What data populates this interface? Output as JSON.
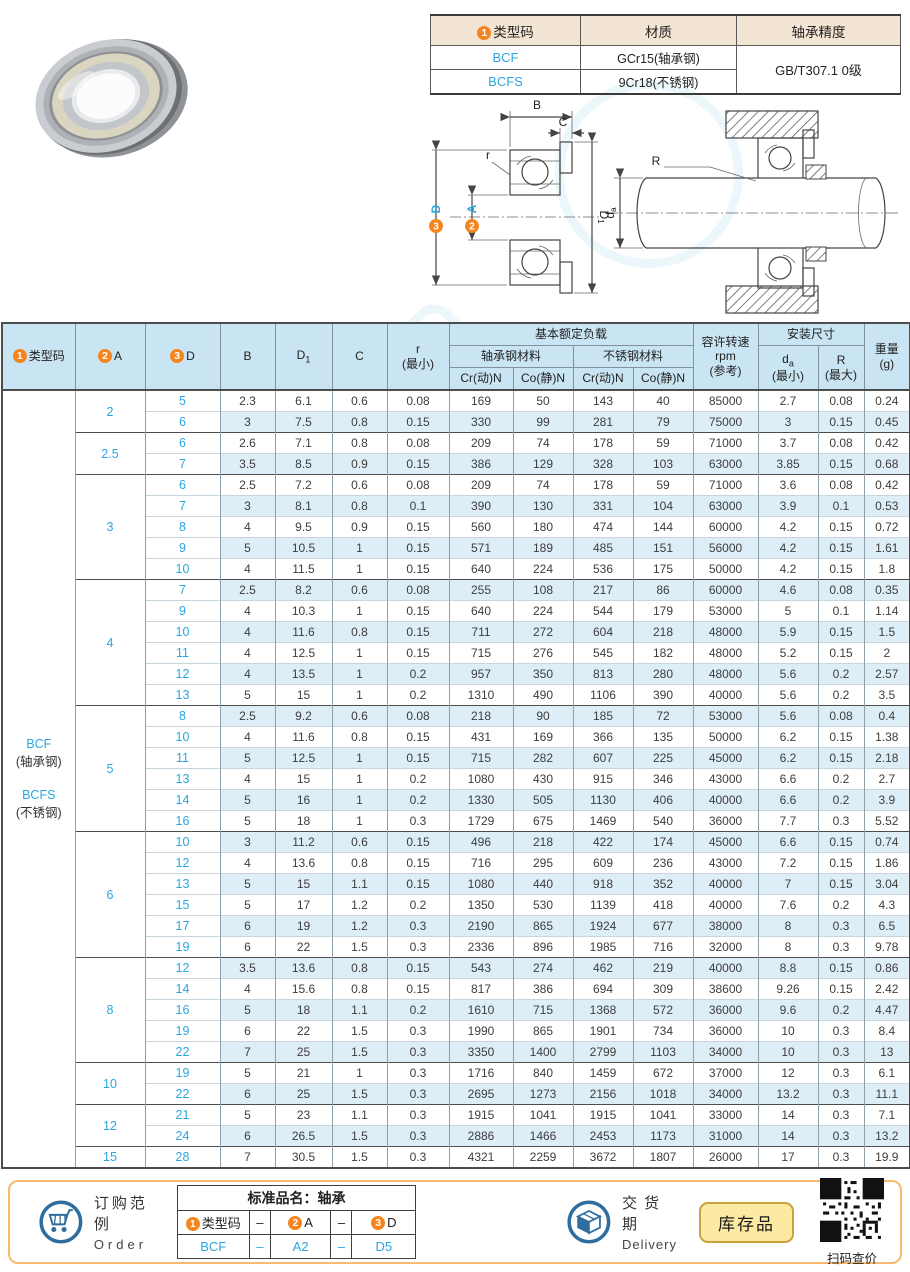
{
  "colors": {
    "accent_blue": "#2aa7e0",
    "badge_orange": "#f5861f",
    "stripe_blue": "#ddeef7",
    "header_blue": "#c9e4f2",
    "beige_header": "#f3e5d3",
    "footer_border": "#f8b96e",
    "stock_yellow": "#fce9a2",
    "icon_blue": "#2e6d9e"
  },
  "top_table": {
    "col1_badge": "1",
    "col1": "类型码",
    "col2": "材质",
    "col3": "轴承精度",
    "rows": [
      {
        "code": "BCF",
        "material": "GCr15(轴承钢)"
      },
      {
        "code": "BCFS",
        "material": "9Cr18(不锈钢)"
      }
    ],
    "precision": "GB/T307.1 0级"
  },
  "diagram": {
    "b": "B",
    "c": "C",
    "r": "r",
    "d_badge": "3",
    "d_label": "D",
    "a_badge": "2",
    "a_label": "A",
    "d1": "D",
    "d1_sub": "1",
    "R": "R",
    "da": "d",
    "da_sub": "a"
  },
  "main_table": {
    "row_count": 37,
    "header": {
      "type_badge": "1",
      "type_label": "类型码",
      "a_badge": "2",
      "a_label": "A",
      "d_badge": "3",
      "d_label": "D",
      "b": "B",
      "d1": "D",
      "d1_sub": "1",
      "c": "C",
      "r": "r",
      "r_note": "(最小)",
      "load": "基本额定负载",
      "steel": "轴承钢材料",
      "stainless": "不锈钢材料",
      "cr1": "Cr(动)N",
      "co1": "Co(静)N",
      "cr2": "Cr(动)N",
      "co2": "Co(静)N",
      "rpm1": "容许转速",
      "rpm2": "rpm",
      "rpm3": "(参考)",
      "install": "安装尺寸",
      "da": "d",
      "da_sub": "a",
      "da_note": "(最小)",
      "R": "R",
      "R_note": "(最大)",
      "weight": "重量",
      "weight_note": "(g)"
    },
    "series": [
      {
        "text": "BCF",
        "style": "blue"
      },
      {
        "text": "(轴承钢)",
        "style": "dark"
      },
      {
        "text": "",
        "style": "gap"
      },
      {
        "text": "BCFS",
        "style": "blue"
      },
      {
        "text": "(不锈钢)",
        "style": "dark"
      }
    ],
    "groups": [
      {
        "a": "2",
        "rows": [
          [
            "5",
            "2.3",
            "6.1",
            "0.6",
            "0.08",
            "169",
            "50",
            "143",
            "40",
            "85000",
            "2.7",
            "0.08",
            "0.24"
          ],
          [
            "6",
            "3",
            "7.5",
            "0.8",
            "0.15",
            "330",
            "99",
            "281",
            "79",
            "75000",
            "3",
            "0.15",
            "0.45"
          ]
        ]
      },
      {
        "a": "2.5",
        "rows": [
          [
            "6",
            "2.6",
            "7.1",
            "0.8",
            "0.08",
            "209",
            "74",
            "178",
            "59",
            "71000",
            "3.7",
            "0.08",
            "0.42"
          ],
          [
            "7",
            "3.5",
            "8.5",
            "0.9",
            "0.15",
            "386",
            "129",
            "328",
            "103",
            "63000",
            "3.85",
            "0.15",
            "0.68"
          ]
        ]
      },
      {
        "a": "3",
        "rows": [
          [
            "6",
            "2.5",
            "7.2",
            "0.6",
            "0.08",
            "209",
            "74",
            "178",
            "59",
            "71000",
            "3.6",
            "0.08",
            "0.42"
          ],
          [
            "7",
            "3",
            "8.1",
            "0.8",
            "0.1",
            "390",
            "130",
            "331",
            "104",
            "63000",
            "3.9",
            "0.1",
            "0.53"
          ],
          [
            "8",
            "4",
            "9.5",
            "0.9",
            "0.15",
            "560",
            "180",
            "474",
            "144",
            "60000",
            "4.2",
            "0.15",
            "0.72"
          ],
          [
            "9",
            "5",
            "10.5",
            "1",
            "0.15",
            "571",
            "189",
            "485",
            "151",
            "56000",
            "4.2",
            "0.15",
            "1.61"
          ],
          [
            "10",
            "4",
            "11.5",
            "1",
            "0.15",
            "640",
            "224",
            "536",
            "175",
            "50000",
            "4.2",
            "0.15",
            "1.8"
          ]
        ]
      },
      {
        "a": "4",
        "rows": [
          [
            "7",
            "2.5",
            "8.2",
            "0.6",
            "0.08",
            "255",
            "108",
            "217",
            "86",
            "60000",
            "4.6",
            "0.08",
            "0.35"
          ],
          [
            "9",
            "4",
            "10.3",
            "1",
            "0.15",
            "640",
            "224",
            "544",
            "179",
            "53000",
            "5",
            "0.1",
            "1.14"
          ],
          [
            "10",
            "4",
            "11.6",
            "0.8",
            "0.15",
            "711",
            "272",
            "604",
            "218",
            "48000",
            "5.9",
            "0.15",
            "1.5"
          ],
          [
            "11",
            "4",
            "12.5",
            "1",
            "0.15",
            "715",
            "276",
            "545",
            "182",
            "48000",
            "5.2",
            "0.15",
            "2"
          ],
          [
            "12",
            "4",
            "13.5",
            "1",
            "0.2",
            "957",
            "350",
            "813",
            "280",
            "48000",
            "5.6",
            "0.2",
            "2.57"
          ],
          [
            "13",
            "5",
            "15",
            "1",
            "0.2",
            "1310",
            "490",
            "1106",
            "390",
            "40000",
            "5.6",
            "0.2",
            "3.5"
          ]
        ]
      },
      {
        "a": "5",
        "rows": [
          [
            "8",
            "2.5",
            "9.2",
            "0.6",
            "0.08",
            "218",
            "90",
            "185",
            "72",
            "53000",
            "5.6",
            "0.08",
            "0.4"
          ],
          [
            "10",
            "4",
            "11.6",
            "0.8",
            "0.15",
            "431",
            "169",
            "366",
            "135",
            "50000",
            "6.2",
            "0.15",
            "1.38"
          ],
          [
            "11",
            "5",
            "12.5",
            "1",
            "0.15",
            "715",
            "282",
            "607",
            "225",
            "45000",
            "6.2",
            "0.15",
            "2.18"
          ],
          [
            "13",
            "4",
            "15",
            "1",
            "0.2",
            "1080",
            "430",
            "915",
            "346",
            "43000",
            "6.6",
            "0.2",
            "2.7"
          ],
          [
            "14",
            "5",
            "16",
            "1",
            "0.2",
            "1330",
            "505",
            "1130",
            "406",
            "40000",
            "6.6",
            "0.2",
            "3.9"
          ],
          [
            "16",
            "5",
            "18",
            "1",
            "0.3",
            "1729",
            "675",
            "1469",
            "540",
            "36000",
            "7.7",
            "0.3",
            "5.52"
          ]
        ]
      },
      {
        "a": "6",
        "rows": [
          [
            "10",
            "3",
            "11.2",
            "0.6",
            "0.15",
            "496",
            "218",
            "422",
            "174",
            "45000",
            "6.6",
            "0.15",
            "0.74"
          ],
          [
            "12",
            "4",
            "13.6",
            "0.8",
            "0.15",
            "716",
            "295",
            "609",
            "236",
            "43000",
            "7.2",
            "0.15",
            "1.86"
          ],
          [
            "13",
            "5",
            "15",
            "1.1",
            "0.15",
            "1080",
            "440",
            "918",
            "352",
            "40000",
            "7",
            "0.15",
            "3.04"
          ],
          [
            "15",
            "5",
            "17",
            "1.2",
            "0.2",
            "1350",
            "530",
            "1139",
            "418",
            "40000",
            "7.6",
            "0.2",
            "4.3"
          ],
          [
            "17",
            "6",
            "19",
            "1.2",
            "0.3",
            "2190",
            "865",
            "1924",
            "677",
            "38000",
            "8",
            "0.3",
            "6.5"
          ],
          [
            "19",
            "6",
            "22",
            "1.5",
            "0.3",
            "2336",
            "896",
            "1985",
            "716",
            "32000",
            "8",
            "0.3",
            "9.78"
          ]
        ]
      },
      {
        "a": "8",
        "rows": [
          [
            "12",
            "3.5",
            "13.6",
            "0.8",
            "0.15",
            "543",
            "274",
            "462",
            "219",
            "40000",
            "8.8",
            "0.15",
            "0.86"
          ],
          [
            "14",
            "4",
            "15.6",
            "0.8",
            "0.15",
            "817",
            "386",
            "694",
            "309",
            "38600",
            "9.26",
            "0.15",
            "2.42"
          ],
          [
            "16",
            "5",
            "18",
            "1.1",
            "0.2",
            "1610",
            "715",
            "1368",
            "572",
            "36000",
            "9.6",
            "0.2",
            "4.47"
          ],
          [
            "19",
            "6",
            "22",
            "1.5",
            "0.3",
            "1990",
            "865",
            "1901",
            "734",
            "36000",
            "10",
            "0.3",
            "8.4"
          ],
          [
            "22",
            "7",
            "25",
            "1.5",
            "0.3",
            "3350",
            "1400",
            "2799",
            "1103",
            "34000",
            "10",
            "0.3",
            "13"
          ]
        ]
      },
      {
        "a": "10",
        "rows": [
          [
            "19",
            "5",
            "21",
            "1",
            "0.3",
            "1716",
            "840",
            "1459",
            "672",
            "37000",
            "12",
            "0.3",
            "6.1"
          ],
          [
            "22",
            "6",
            "25",
            "1.5",
            "0.3",
            "2695",
            "1273",
            "2156",
            "1018",
            "34000",
            "13.2",
            "0.3",
            "11.1"
          ]
        ]
      },
      {
        "a": "12",
        "rows": [
          [
            "21",
            "5",
            "23",
            "1.1",
            "0.3",
            "1915",
            "1041",
            "1915",
            "1041",
            "33000",
            "14",
            "0.3",
            "7.1"
          ],
          [
            "24",
            "6",
            "26.5",
            "1.5",
            "0.3",
            "2886",
            "1466",
            "2453",
            "1173",
            "31000",
            "14",
            "0.3",
            "13.2"
          ]
        ]
      },
      {
        "a": "15",
        "rows": [
          [
            "28",
            "7",
            "30.5",
            "1.5",
            "0.3",
            "4321",
            "2259",
            "3672",
            "1807",
            "26000",
            "17",
            "0.3",
            "19.9"
          ]
        ]
      }
    ]
  },
  "footer": {
    "order_cn": "订购范例",
    "order_en": "Order",
    "order_table": {
      "title": "标准品名：轴承",
      "h1_badge": "1",
      "h1": "类型码",
      "dash1": "–",
      "h2_badge": "2",
      "h2": "A",
      "dash2": "–",
      "h3_badge": "3",
      "h3": "D",
      "v1": "BCF",
      "vdash1": "–",
      "v2": "A2",
      "vdash2": "–",
      "v3": "D5"
    },
    "delivery_cn": "交货期",
    "delivery_en": "Delivery",
    "stock_label": "库存品",
    "qr_caption": "扫码查价"
  }
}
